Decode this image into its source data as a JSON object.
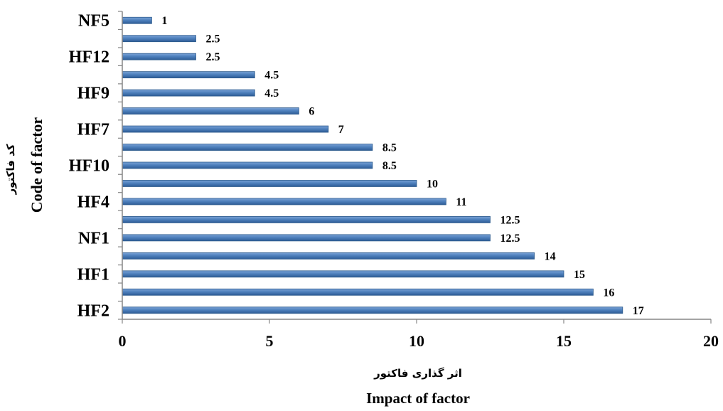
{
  "chart_data": {
    "type": "bar",
    "orientation": "horizontal",
    "categories": [
      "HF2",
      "",
      "HF1",
      "",
      "NF1",
      "",
      "HF4",
      "",
      "HF10",
      "",
      "HF7",
      "",
      "HF9",
      "",
      "HF12",
      "",
      "NF5"
    ],
    "values": [
      17,
      16,
      15,
      14,
      12.5,
      12.5,
      11,
      10,
      8.5,
      8.5,
      7,
      6,
      4.5,
      4.5,
      2.5,
      2.5,
      1
    ],
    "data_labels": [
      "17",
      "16",
      "15",
      "14",
      "12.5",
      "12.5",
      "11",
      "10",
      "8.5",
      "8.5",
      "7",
      "6",
      "4.5",
      "4.5",
      "2.5",
      "2.5",
      "1"
    ],
    "xlim": [
      0,
      20
    ],
    "x_ticks": [
      "0",
      "5",
      "10",
      "15",
      "20"
    ],
    "xlabel_fa": "اثر گذاری فاکتور",
    "xlabel": "Impact of factor",
    "ylabel_fa": "کد فاکتور",
    "ylabel": "Code of factor",
    "bar_color": "#4F81BD",
    "bar_edge_color": "#2C5A8C",
    "grid": false,
    "legend": "none"
  }
}
